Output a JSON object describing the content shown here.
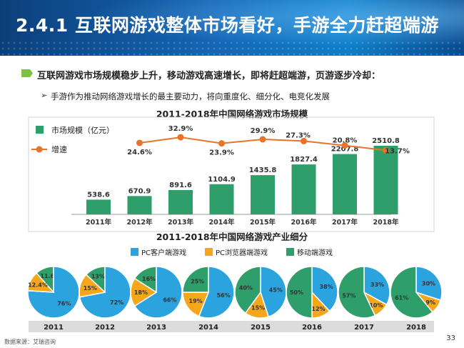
{
  "slide": {
    "title": "2.4.1 互联网游戏整体市场看好，手游全力赶超端游",
    "bullet1": "互联网游戏市场规模稳步上升，移动游戏高速增长，即将赶超端游，页游逐步冷却：",
    "bullet2": "手游作为推动网络游戏增长的最主要动力，将向重度化、细分化、电竞化发展",
    "source": "数据来源：艾瑞咨询",
    "page_number": "33",
    "bullet2_icon": "chevron-right-icon"
  },
  "chart_data": [
    {
      "type": "bar",
      "title": "2011-2018年中国网络游戏市场规模",
      "categories": [
        "2011年",
        "2012年",
        "2013年",
        "2014年",
        "2015年",
        "2016年",
        "2017年",
        "2018年"
      ],
      "series": [
        {
          "name": "市场规模（亿元）",
          "type": "bar",
          "color": "#2e9e6b",
          "values": [
            538.6,
            670.9,
            891.6,
            1104.9,
            1435.8,
            1827.4,
            2207.8,
            2510.8
          ],
          "labels": [
            "538.6",
            "670.9",
            "891.6",
            "1104.9",
            "1435.8",
            "1827.4",
            "2207.8",
            "2510.8"
          ]
        },
        {
          "name": "增速",
          "type": "line",
          "color": "#e8742a",
          "values": [
            null,
            24.6,
            32.9,
            23.9,
            29.9,
            27.3,
            20.8,
            13.7
          ],
          "labels": [
            "",
            "24.6%",
            "32.9%",
            "23.9%",
            "29.9%",
            "27.3%",
            "20.8%",
            "13.7%"
          ]
        }
      ],
      "legend": "top-left"
    },
    {
      "type": "pie",
      "title": "2011-2018年中国网络游戏产业细分",
      "legend": [
        "PC客户端游戏",
        "PC浏览器端游戏",
        "移动端游戏"
      ],
      "colors": [
        "#2aa3df",
        "#f4a71d",
        "#2e9e6b"
      ],
      "years": [
        "2011",
        "2012",
        "2013",
        "2014",
        "2015",
        "2016",
        "2017",
        "2018"
      ],
      "pies": [
        {
          "year": "2011",
          "values": [
            76,
            12.4,
            11.6
          ],
          "labels": [
            "76%",
            "12.4%",
            "11.6"
          ]
        },
        {
          "year": "2012",
          "values": [
            72,
            15,
            13
          ],
          "labels": [
            "72%",
            "15%",
            "13%"
          ]
        },
        {
          "year": "2013",
          "values": [
            66,
            18,
            16
          ],
          "labels": [
            "66%",
            "18%",
            "16%"
          ]
        },
        {
          "year": "2014",
          "values": [
            56,
            19,
            25
          ],
          "labels": [
            "56%",
            "19%",
            "25%"
          ]
        },
        {
          "year": "2015",
          "values": [
            45,
            15,
            40
          ],
          "labels": [
            "45%",
            "15%",
            "40%"
          ]
        },
        {
          "year": "2016",
          "values": [
            38,
            12,
            50
          ],
          "labels": [
            "38%",
            "12%",
            "50%"
          ]
        },
        {
          "year": "2017",
          "values": [
            33,
            10,
            57
          ],
          "labels": [
            "33%",
            "10%",
            "57%"
          ]
        },
        {
          "year": "2018",
          "values": [
            30,
            9,
            61
          ],
          "labels": [
            "30%",
            "9%",
            "61%"
          ]
        }
      ]
    }
  ]
}
